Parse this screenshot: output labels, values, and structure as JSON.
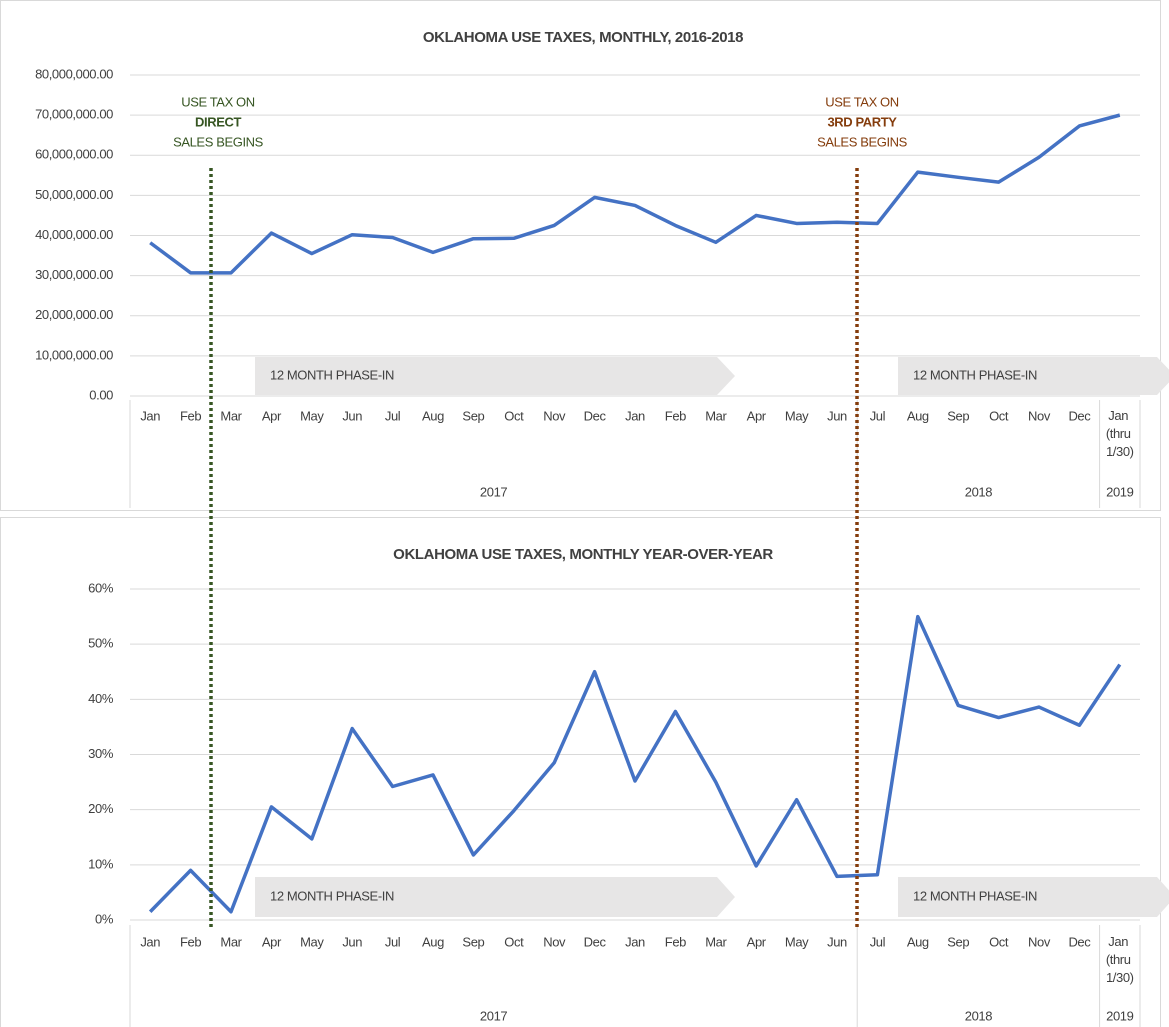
{
  "chart_data": [
    {
      "type": "line",
      "title": "OKLAHOMA USE TAXES, MONTHLY, 2016-2018",
      "categories": [
        "Jan",
        "Feb",
        "Mar",
        "Apr",
        "May",
        "Jun",
        "Jul",
        "Aug",
        "Sep",
        "Oct",
        "Nov",
        "Dec",
        "Jan",
        "Feb",
        "Mar",
        "Apr",
        "May",
        "Jun",
        "Jul",
        "Aug",
        "Sep",
        "Oct",
        "Nov",
        "Dec",
        "Jan (thru 1/30)"
      ],
      "groups": [
        {
          "label": "2017",
          "count": 18
        },
        {
          "label": "2018",
          "count": 6
        },
        {
          "label": "2019",
          "count": 1
        }
      ],
      "series": [
        {
          "name": "Use taxes",
          "color": "#4472c4",
          "values": [
            38200000,
            30700000,
            30700000,
            40600000,
            35500000,
            40200000,
            39500000,
            35800000,
            39200000,
            39300000,
            42500000,
            49500000,
            47500000,
            42500000,
            38300000,
            45000000,
            43000000,
            43300000,
            43000000,
            55800000,
            54500000,
            53300000,
            59500000,
            67300000,
            70000000
          ]
        }
      ],
      "ylim": [
        0,
        80000000
      ],
      "yticks": [
        {
          "value": 0,
          "label": "0.00"
        },
        {
          "value": 10000000,
          "label": "10,000,000.00"
        },
        {
          "value": 20000000,
          "label": "20,000,000.00"
        },
        {
          "value": 30000000,
          "label": "30,000,000.00"
        },
        {
          "value": 40000000,
          "label": "40,000,000.00"
        },
        {
          "value": 50000000,
          "label": "50,000,000.00"
        },
        {
          "value": 60000000,
          "label": "60,000,000.00"
        },
        {
          "value": 70000000,
          "label": "70,000,000.00"
        },
        {
          "value": 80000000,
          "label": "80,000,000.00"
        }
      ],
      "grid": true,
      "annotations": [
        {
          "lines": [
            "USE TAX ON",
            "DIRECT",
            "SALES BEGINS"
          ],
          "color": "#375623"
        },
        {
          "lines": [
            "USE TAX ON",
            "3RD PARTY",
            "SALES BEGINS"
          ],
          "color": "#843c0c"
        }
      ],
      "phase_in": [
        {
          "text": "12 MONTH PHASE-IN",
          "color": "#375623"
        },
        {
          "text": "12 MONTH PHASE-IN",
          "color": "#843c0c"
        }
      ]
    },
    {
      "type": "line",
      "title": "OKLAHOMA USE TAXES, MONTHLY YEAR-OVER-YEAR",
      "categories": [
        "Jan",
        "Feb",
        "Mar",
        "Apr",
        "May",
        "Jun",
        "Jul",
        "Aug",
        "Sep",
        "Oct",
        "Nov",
        "Dec",
        "Jan",
        "Feb",
        "Mar",
        "Apr",
        "May",
        "Jun",
        "Jul",
        "Aug",
        "Sep",
        "Oct",
        "Nov",
        "Dec",
        "Jan (thru 1/30)"
      ],
      "groups": [
        {
          "label": "2017",
          "count": 18
        },
        {
          "label": "2018",
          "count": 6
        },
        {
          "label": "2019",
          "count": 1
        }
      ],
      "series": [
        {
          "name": "Year-over-year change",
          "color": "#4472c4",
          "values": [
            1.5,
            9,
            1.5,
            20.5,
            14.7,
            34.7,
            24.2,
            26.3,
            11.8,
            19.8,
            28.5,
            45,
            25.2,
            37.8,
            25,
            9.8,
            21.8,
            7.9,
            8.2,
            55,
            38.9,
            36.7,
            38.6,
            35.3,
            46.3
          ]
        }
      ],
      "ylim": [
        0,
        60
      ],
      "yticks": [
        {
          "value": 0,
          "label": "0%"
        },
        {
          "value": 10,
          "label": "10%"
        },
        {
          "value": 20,
          "label": "20%"
        },
        {
          "value": 30,
          "label": "30%"
        },
        {
          "value": 40,
          "label": "40%"
        },
        {
          "value": 50,
          "label": "50%"
        },
        {
          "value": 60,
          "label": "60%"
        }
      ],
      "grid": true,
      "phase_in": [
        {
          "text": "12 MONTH PHASE-IN",
          "color": "#375623"
        },
        {
          "text": "12 MONTH PHASE-IN",
          "color": "#843c0c"
        }
      ]
    }
  ]
}
